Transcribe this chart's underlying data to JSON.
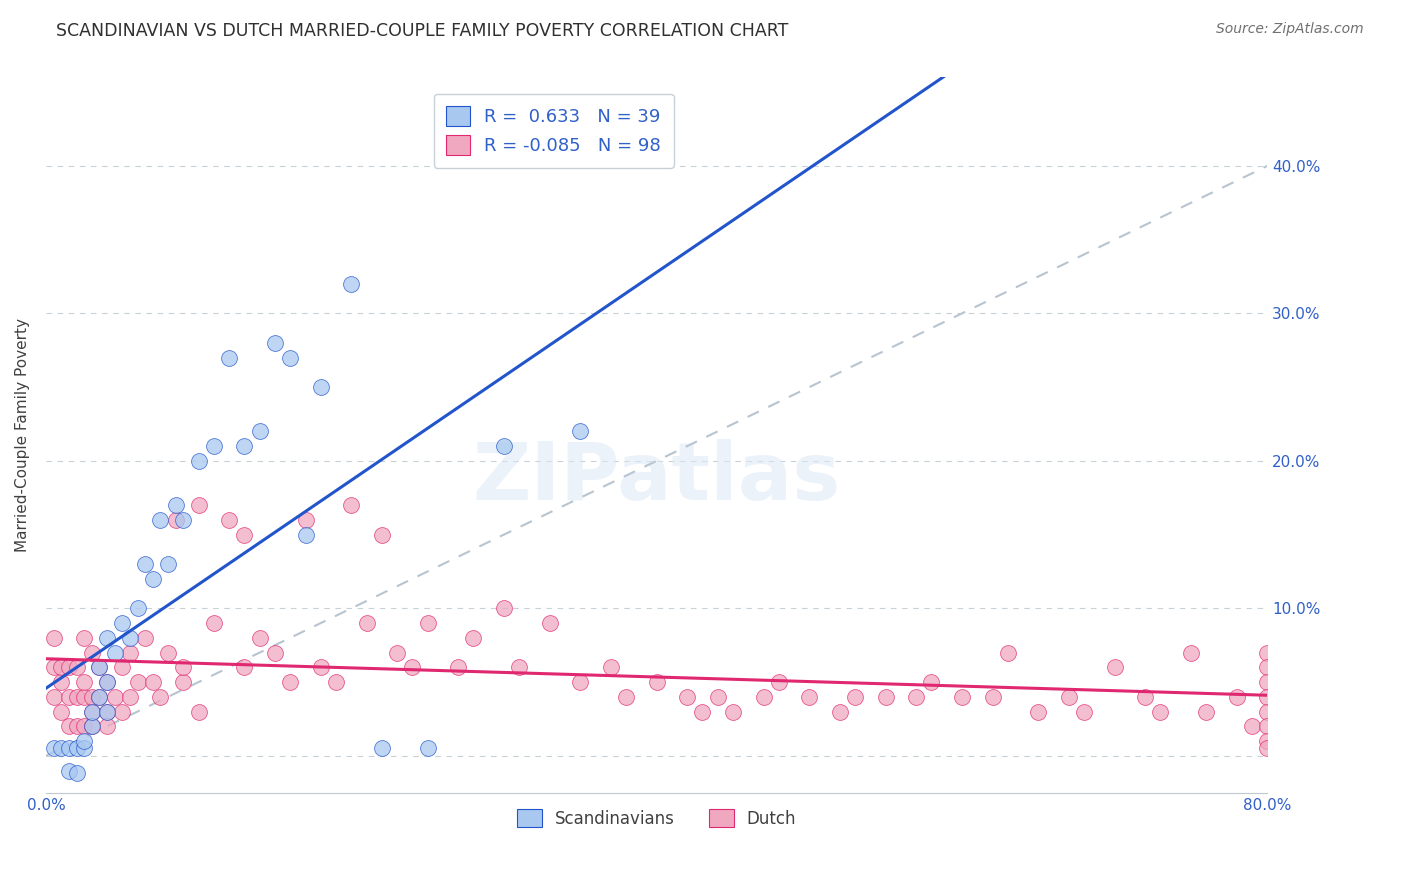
{
  "title": "SCANDINAVIAN VS DUTCH MARRIED-COUPLE FAMILY POVERTY CORRELATION CHART",
  "source": "Source: ZipAtlas.com",
  "ylabel": "Married-Couple Family Poverty",
  "xlim": [
    0.0,
    0.8
  ],
  "ylim": [
    -0.025,
    0.46
  ],
  "xticks": [
    0.0,
    0.2,
    0.4,
    0.6,
    0.8
  ],
  "xtick_labels": [
    "0.0%",
    "",
    "",
    "",
    "80.0%"
  ],
  "yticks": [
    0.0,
    0.1,
    0.2,
    0.3,
    0.4
  ],
  "ytick_labels_right": [
    "",
    "10.0%",
    "20.0%",
    "30.0%",
    "40.0%"
  ],
  "scandinavian_color": "#a8c8f0",
  "dutch_color": "#f0a8c0",
  "scandinavian_edge_color": "#2255cc",
  "dutch_edge_color": "#e02870",
  "scandinavian_line_color": "#2255cc",
  "dutch_line_color": "#e02870",
  "ref_line_color": "#b8c4d0",
  "R_scand": 0.633,
  "N_scand": 39,
  "R_dutch": -0.085,
  "N_dutch": 98,
  "watermark": "ZIPatlas",
  "legend_label_scand": "Scandinavians",
  "legend_label_dutch": "Dutch",
  "scand_x": [
    0.005,
    0.01,
    0.015,
    0.015,
    0.02,
    0.02,
    0.025,
    0.025,
    0.03,
    0.03,
    0.035,
    0.035,
    0.04,
    0.04,
    0.04,
    0.045,
    0.05,
    0.055,
    0.06,
    0.065,
    0.07,
    0.075,
    0.08,
    0.085,
    0.09,
    0.1,
    0.11,
    0.12,
    0.13,
    0.14,
    0.15,
    0.16,
    0.17,
    0.18,
    0.2,
    0.22,
    0.25,
    0.3,
    0.35
  ],
  "scand_y": [
    0.005,
    0.005,
    0.005,
    -0.01,
    0.005,
    -0.012,
    0.005,
    0.01,
    0.02,
    0.03,
    0.04,
    0.06,
    0.03,
    0.05,
    0.08,
    0.07,
    0.09,
    0.08,
    0.1,
    0.13,
    0.12,
    0.16,
    0.13,
    0.17,
    0.16,
    0.2,
    0.21,
    0.27,
    0.21,
    0.22,
    0.28,
    0.27,
    0.15,
    0.25,
    0.32,
    0.005,
    0.005,
    0.21,
    0.22
  ],
  "dutch_x": [
    0.005,
    0.005,
    0.005,
    0.01,
    0.01,
    0.01,
    0.015,
    0.015,
    0.015,
    0.02,
    0.02,
    0.02,
    0.025,
    0.025,
    0.025,
    0.025,
    0.03,
    0.03,
    0.03,
    0.03,
    0.035,
    0.035,
    0.04,
    0.04,
    0.04,
    0.045,
    0.05,
    0.05,
    0.055,
    0.055,
    0.06,
    0.065,
    0.07,
    0.075,
    0.08,
    0.085,
    0.09,
    0.09,
    0.1,
    0.1,
    0.11,
    0.12,
    0.13,
    0.13,
    0.14,
    0.15,
    0.16,
    0.17,
    0.18,
    0.19,
    0.2,
    0.21,
    0.22,
    0.23,
    0.24,
    0.25,
    0.27,
    0.28,
    0.3,
    0.31,
    0.33,
    0.35,
    0.37,
    0.38,
    0.4,
    0.42,
    0.43,
    0.44,
    0.45,
    0.47,
    0.48,
    0.5,
    0.52,
    0.53,
    0.55,
    0.57,
    0.58,
    0.6,
    0.62,
    0.63,
    0.65,
    0.67,
    0.68,
    0.7,
    0.72,
    0.73,
    0.75,
    0.76,
    0.78,
    0.79,
    0.8,
    0.8,
    0.8,
    0.8,
    0.8,
    0.8,
    0.8,
    0.8
  ],
  "dutch_y": [
    0.08,
    0.06,
    0.04,
    0.05,
    0.03,
    0.06,
    0.04,
    0.02,
    0.06,
    0.04,
    0.02,
    0.06,
    0.04,
    0.02,
    0.05,
    0.08,
    0.03,
    0.04,
    0.02,
    0.07,
    0.04,
    0.06,
    0.03,
    0.05,
    0.02,
    0.04,
    0.03,
    0.06,
    0.04,
    0.07,
    0.05,
    0.08,
    0.05,
    0.04,
    0.07,
    0.16,
    0.05,
    0.06,
    0.03,
    0.17,
    0.09,
    0.16,
    0.15,
    0.06,
    0.08,
    0.07,
    0.05,
    0.16,
    0.06,
    0.05,
    0.17,
    0.09,
    0.15,
    0.07,
    0.06,
    0.09,
    0.06,
    0.08,
    0.1,
    0.06,
    0.09,
    0.05,
    0.06,
    0.04,
    0.05,
    0.04,
    0.03,
    0.04,
    0.03,
    0.04,
    0.05,
    0.04,
    0.03,
    0.04,
    0.04,
    0.04,
    0.05,
    0.04,
    0.04,
    0.07,
    0.03,
    0.04,
    0.03,
    0.06,
    0.04,
    0.03,
    0.07,
    0.03,
    0.04,
    0.02,
    0.07,
    0.06,
    0.05,
    0.04,
    0.03,
    0.02,
    0.01,
    0.005
  ]
}
